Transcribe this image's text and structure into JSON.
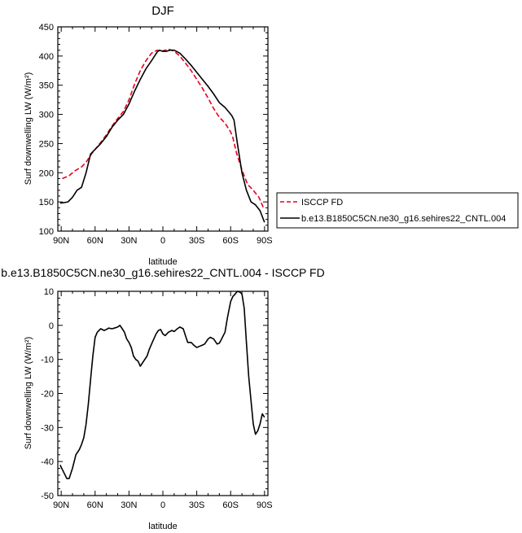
{
  "chart_data": [
    {
      "type": "line",
      "title": "DJF",
      "xlabel": "latitude",
      "ylabel": "Surf downwelling LW (W/m²)",
      "x_ticks": [
        -90,
        -60,
        -30,
        0,
        30,
        60,
        90
      ],
      "x_tick_labels": [
        "90N",
        "60N",
        "30N",
        "0",
        "30S",
        "60S",
        "90S"
      ],
      "xlim": [
        -93,
        93
      ],
      "ylim": [
        100,
        450
      ],
      "y_ticks": [
        100,
        150,
        200,
        250,
        300,
        350,
        400,
        450
      ],
      "legend_position": "right",
      "series": [
        {
          "name": "ISCCP FD",
          "color": "#e8001c",
          "dash": "dashed",
          "x": [
            -89,
            -83,
            -78,
            -72,
            -68,
            -64,
            -60,
            -55,
            -50,
            -45,
            -40,
            -35,
            -30,
            -25,
            -20,
            -15,
            -10,
            -5,
            -2,
            2,
            5,
            10,
            15,
            20,
            25,
            30,
            35,
            40,
            45,
            50,
            55,
            60,
            62,
            65,
            70,
            75,
            80,
            85,
            89
          ],
          "y": [
            190,
            195,
            203,
            210,
            218,
            230,
            240,
            252,
            265,
            280,
            293,
            305,
            325,
            352,
            375,
            392,
            405,
            410,
            408,
            410,
            412,
            408,
            400,
            388,
            375,
            360,
            345,
            328,
            310,
            295,
            285,
            270,
            260,
            235,
            205,
            180,
            170,
            158,
            140
          ]
        },
        {
          "name": "b.e13.B1850C5CN.ne30_g16.sehires22_CNTL.004",
          "color": "#000000",
          "dash": "solid",
          "x": [
            -91,
            -87,
            -84,
            -80,
            -76,
            -72,
            -68,
            -64,
            -60,
            -55,
            -50,
            -45,
            -40,
            -35,
            -30,
            -25,
            -20,
            -15,
            -10,
            -5,
            -3,
            0,
            3,
            6,
            10,
            15,
            20,
            25,
            30,
            35,
            40,
            45,
            50,
            55,
            58,
            61,
            63,
            66,
            70,
            74,
            78,
            82,
            86,
            90
          ],
          "y": [
            148,
            149,
            150,
            158,
            170,
            175,
            200,
            232,
            240,
            250,
            262,
            278,
            290,
            300,
            318,
            340,
            360,
            378,
            392,
            407,
            410,
            408,
            408,
            410,
            410,
            405,
            395,
            384,
            372,
            360,
            348,
            335,
            320,
            312,
            305,
            298,
            290,
            250,
            200,
            170,
            150,
            145,
            135,
            115
          ]
        }
      ]
    },
    {
      "type": "line",
      "title": "b.e13.B1850C5CN.ne30_g16.sehires22_CNTL.004 - ISCCP FD",
      "xlabel": "latitude",
      "ylabel": "Surf downwelling LW (W/m²)",
      "x_ticks": [
        -90,
        -60,
        -30,
        0,
        30,
        60,
        90
      ],
      "x_tick_labels": [
        "90N",
        "60N",
        "30N",
        "0",
        "30S",
        "60S",
        "90S"
      ],
      "xlim": [
        -93,
        93
      ],
      "ylim": [
        -50,
        10
      ],
      "y_ticks": [
        -50,
        -40,
        -30,
        -20,
        -10,
        0,
        10
      ],
      "series": [
        {
          "name": "",
          "color": "#000000",
          "dash": "solid",
          "x": [
            -91,
            -88,
            -85,
            -83,
            -80,
            -77,
            -74,
            -72,
            -70,
            -68,
            -66,
            -64,
            -62,
            -60,
            -58,
            -55,
            -52,
            -50,
            -48,
            -45,
            -43,
            -40,
            -38,
            -36,
            -34,
            -32,
            -30,
            -28,
            -26,
            -24,
            -22,
            -20,
            -17,
            -14,
            -12,
            -10,
            -8,
            -6,
            -4,
            -2,
            0,
            2,
            5,
            8,
            10,
            12,
            15,
            18,
            20,
            22,
            25,
            28,
            30,
            32,
            35,
            37,
            40,
            42,
            45,
            48,
            50,
            52,
            55,
            57,
            60,
            62,
            64,
            66,
            68,
            70,
            72,
            74,
            76,
            78,
            80,
            82,
            84,
            86,
            88,
            90
          ],
          "y": [
            -41,
            -43,
            -45,
            -45,
            -42,
            -38,
            -36.5,
            -35,
            -33,
            -29,
            -23,
            -16,
            -9,
            -3.5,
            -2,
            -1,
            -1.5,
            -1.2,
            -0.8,
            -1,
            -0.8,
            -0.5,
            0,
            -1,
            -2,
            -4,
            -5,
            -6.5,
            -9,
            -10,
            -10.5,
            -12,
            -10.5,
            -9,
            -7,
            -5.5,
            -4,
            -2.5,
            -1.5,
            -1.2,
            -2.5,
            -3,
            -2,
            -1.5,
            -1.8,
            -1.2,
            -0.5,
            -1,
            -3,
            -5,
            -5,
            -6,
            -6.5,
            -6.2,
            -5.8,
            -5.5,
            -4,
            -3.5,
            -4,
            -5.5,
            -5.2,
            -4,
            -2,
            2,
            7,
            8.5,
            9.2,
            10,
            9.8,
            9.2,
            5,
            -5,
            -15,
            -22,
            -29,
            -32,
            -31,
            -29,
            -26,
            -27
          ]
        }
      ]
    }
  ]
}
